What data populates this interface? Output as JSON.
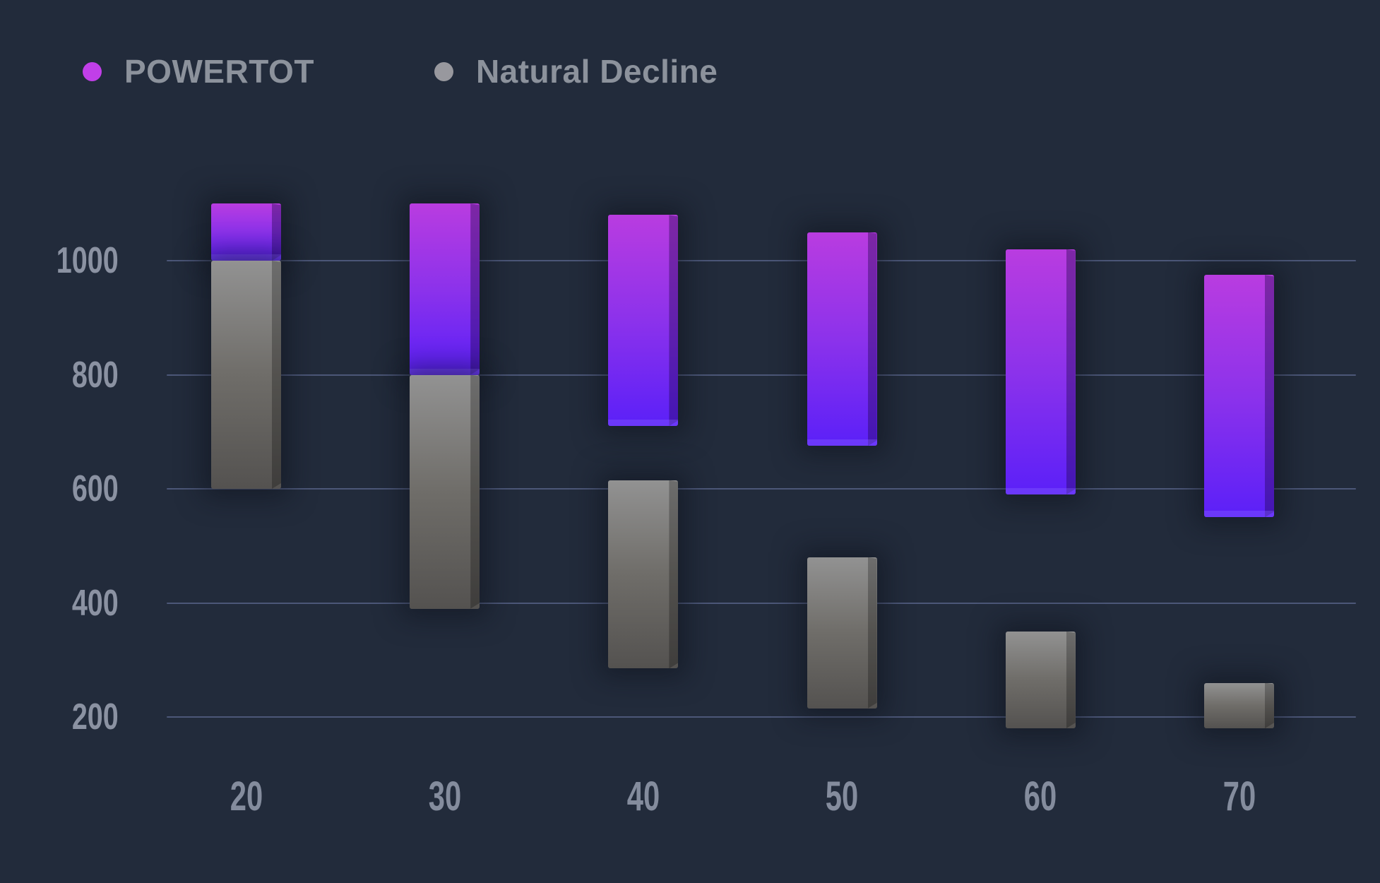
{
  "background": "#222b3b",
  "legend": {
    "items": [
      {
        "label": "POWERTOT",
        "color": "#c13fe8"
      },
      {
        "label": "Natural Decline",
        "color": "#98989e"
      }
    ]
  },
  "chart_data": {
    "type": "bar",
    "subtype": "floating-range-columns",
    "title": "",
    "xlabel": "",
    "ylabel": "",
    "categories": [
      "20",
      "30",
      "40",
      "50",
      "60",
      "70"
    ],
    "yticks": [
      1000,
      800,
      600,
      400,
      200
    ],
    "ytick_labels": [
      "1000",
      "800",
      "600",
      "400",
      "200"
    ],
    "ylim": [
      150,
      1150
    ],
    "grid": true,
    "legend_position": "top-left",
    "series": [
      {
        "name": "POWERTOT",
        "gradient": [
          "#b93ce0",
          "#8c32eb",
          "#5b20f8"
        ],
        "side_shade": "rgba(28, 6, 72, 0.38)",
        "ranges": [
          [
            1000,
            1100
          ],
          [
            800,
            1100
          ],
          [
            710,
            1080
          ],
          [
            675,
            1050
          ],
          [
            590,
            1020
          ],
          [
            550,
            975
          ]
        ]
      },
      {
        "name": "Natural Decline",
        "gradient": [
          "#929292",
          "#6f6d69",
          "#545250"
        ],
        "side_shade": "rgba(0, 0, 0, 0.25)",
        "ranges": [
          [
            600,
            1000
          ],
          [
            390,
            800
          ],
          [
            285,
            615
          ],
          [
            215,
            480
          ],
          [
            180,
            350
          ],
          [
            180,
            260
          ]
        ]
      }
    ]
  }
}
